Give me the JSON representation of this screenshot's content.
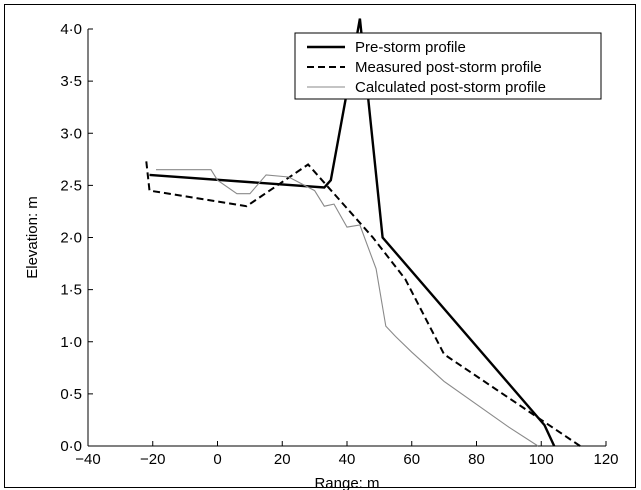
{
  "chart_data": {
    "type": "line",
    "xlabel": "Range: m",
    "ylabel": "Elevation: m",
    "xlim": [
      -40,
      120
    ],
    "ylim": [
      0,
      4
    ],
    "xticks": [
      -40,
      -20,
      0,
      20,
      40,
      60,
      80,
      100,
      120
    ],
    "xtick_labels": [
      "−40",
      "−20",
      "0",
      "20",
      "40",
      "60",
      "80",
      "100",
      "120"
    ],
    "yticks": [
      0,
      0.5,
      1,
      1.5,
      2,
      2.5,
      3,
      3.5,
      4
    ],
    "ytick_labels": [
      "0·0",
      "0·5",
      "1·0",
      "1·5",
      "2·0",
      "2·5",
      "3·0",
      "3·5",
      "4·0"
    ],
    "grid": false,
    "legend_position": "top-right",
    "series": [
      {
        "name": "Pre-storm profile",
        "style": "solid-thick",
        "color": "#000000",
        "x": [
          -21,
          33,
          35,
          40,
          44,
          46,
          51,
          101,
          104
        ],
        "y": [
          2.6,
          2.48,
          2.55,
          3.4,
          4.1,
          3.5,
          2.0,
          0.2,
          0.0
        ]
      },
      {
        "name": "Measured post-storm profile",
        "style": "dashed",
        "color": "#000000",
        "x": [
          -22,
          -21,
          9,
          28,
          38,
          48,
          58,
          70,
          100,
          112
        ],
        "y": [
          2.73,
          2.45,
          2.3,
          2.7,
          2.35,
          2.0,
          1.6,
          0.88,
          0.25,
          0.0
        ]
      },
      {
        "name": "Calculated post-storm profile",
        "style": "solid-thin",
        "color": "#8a8a8a",
        "x": [
          -19,
          -2,
          0,
          6,
          10,
          15,
          22,
          30,
          33,
          36,
          40,
          44,
          46,
          49,
          52,
          55,
          60,
          70,
          80,
          90,
          99
        ],
        "y": [
          2.65,
          2.65,
          2.55,
          2.42,
          2.42,
          2.6,
          2.58,
          2.45,
          2.3,
          2.32,
          2.1,
          2.12,
          1.95,
          1.7,
          1.15,
          1.05,
          0.9,
          0.62,
          0.4,
          0.18,
          0.0
        ]
      }
    ]
  }
}
